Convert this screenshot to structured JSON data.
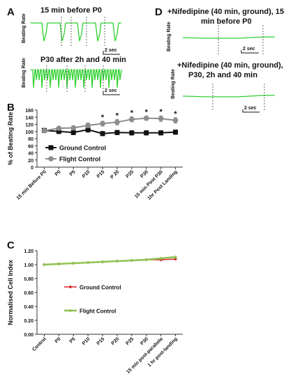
{
  "panel_A": {
    "letter": "A",
    "trace1_title": "15 min before P0",
    "trace2_title": "P30 after 2h and 40 min",
    "ylabel": "Beating Rate",
    "scalebar": "2 sec"
  },
  "panel_D": {
    "letter": "D",
    "trace1_title_line1": "+Nifedipine (40 min, ground), 15",
    "trace1_title_line2": "min before P0",
    "trace2_title_line1": "+Nifedipine (40 min, ground),",
    "trace2_title_line2": "P30, 2h and 40 min",
    "ylabel": "Beating Rate",
    "scalebar": "2 sec"
  },
  "colors": {
    "trace": "#2fd12f",
    "ground": "#111111",
    "flight": "#8c8c8c",
    "ground_c": "#d9262a",
    "flight_c": "#8fc250"
  },
  "chart_data": [
    {
      "panel": "B",
      "type": "line",
      "ylabel": "% of Beating Rate",
      "categories": [
        "15 min Before P0",
        "P0",
        "P5",
        "P10",
        "P15",
        "P 20",
        "P25",
        "P30",
        "15 min Post P30",
        "1hr Post Landing"
      ],
      "ylim": [
        0,
        160
      ],
      "yticks": [
        0,
        20,
        40,
        60,
        80,
        100,
        120,
        140,
        160
      ],
      "series": [
        {
          "name": "Ground Control",
          "values": [
            103,
            100,
            97,
            105,
            94,
            97,
            96,
            96,
            96,
            98
          ],
          "err": [
            5,
            6,
            6,
            7,
            6,
            6,
            6,
            6,
            6,
            6
          ]
        },
        {
          "name": "Flight Control",
          "values": [
            102,
            109,
            110,
            117,
            122,
            126,
            134,
            137,
            136,
            131
          ],
          "err": [
            5,
            5,
            6,
            7,
            7,
            8,
            7,
            6,
            8,
            8
          ]
        }
      ],
      "significance": [
        "",
        "",
        "",
        "",
        "*",
        "*",
        "*",
        "*",
        "*",
        "*"
      ],
      "legend": "right"
    },
    {
      "panel": "C",
      "type": "line",
      "ylabel": "Normalised Cell Index",
      "categories": [
        "Control",
        "P0",
        "P5",
        "P10",
        "P15",
        "P20",
        "P25",
        "P30",
        "15 min post-parabola",
        "1 hr post-landing"
      ],
      "ylim": [
        0,
        1.2
      ],
      "yticks": [
        "0.00",
        "0.20",
        "0.40",
        "0.60",
        "0.80",
        "1.00",
        "1.20"
      ],
      "series": [
        {
          "name": "Ground Control",
          "values": [
            1.0,
            1.01,
            1.02,
            1.03,
            1.04,
            1.05,
            1.06,
            1.07,
            1.07,
            1.08
          ]
        },
        {
          "name": "Flight Control",
          "values": [
            1.0,
            1.01,
            1.02,
            1.03,
            1.04,
            1.05,
            1.06,
            1.07,
            1.09,
            1.11
          ]
        }
      ],
      "legend": "right"
    }
  ]
}
